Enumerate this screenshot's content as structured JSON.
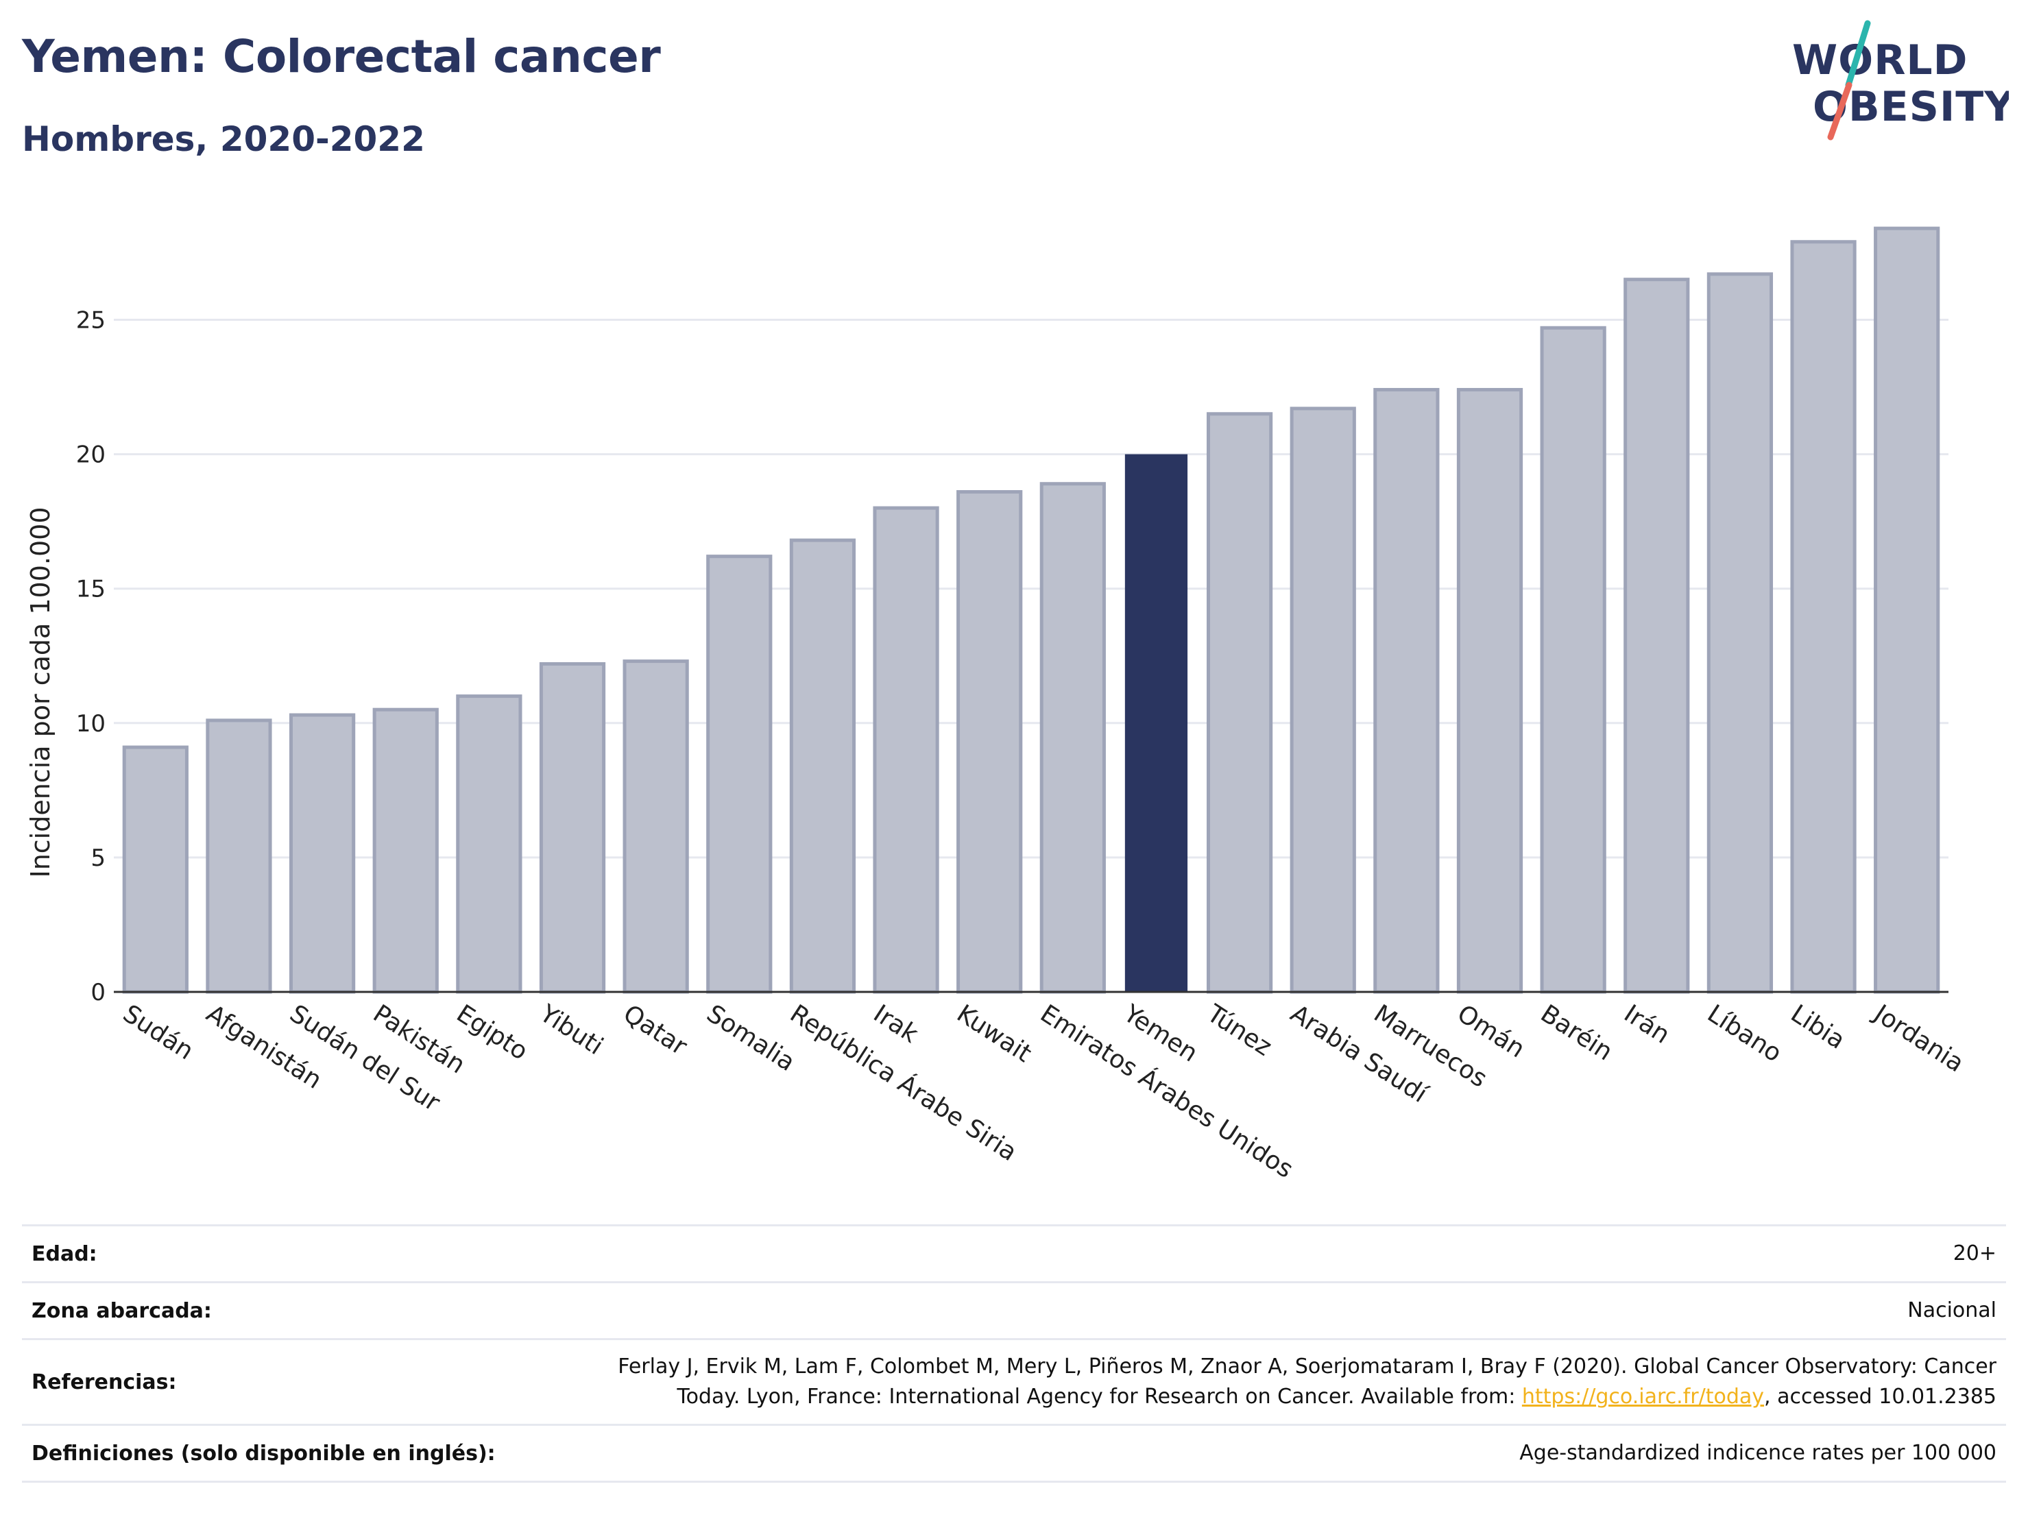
{
  "header": {
    "title": "Yemen: Colorectal cancer",
    "subtitle": "Hombres, 2020-2022"
  },
  "logo": {
    "line1": "WORLD",
    "line2": "OBESITY",
    "stroke_colors": [
      "#2bb5ad",
      "#e8685a"
    ]
  },
  "colors": {
    "highlight": "#2a3560",
    "bar_fill": "#bcc0cd",
    "bar_stroke": "#9ea4b8",
    "link": "#f2b21c"
  },
  "chart_data": {
    "type": "bar",
    "title": "Yemen: Colorectal cancer",
    "subtitle": "Hombres, 2020-2022",
    "xlabel": "",
    "ylabel": "Incidencia por cada 100.000",
    "ylim": [
      0,
      29.5
    ],
    "yticks": [
      0,
      5,
      10,
      15,
      20,
      25
    ],
    "grid": true,
    "highlight_category": "Yemen",
    "categories": [
      "Sudán",
      "Afganistán",
      "Sudán del Sur",
      "Pakistán",
      "Egipto",
      "Yibuti",
      "Qatar",
      "Somalia",
      "República Árabe Siria",
      "Irak",
      "Kuwait",
      "Emiratos Árabes Unidos",
      "Yemen",
      "Túnez",
      "Arabia Saudí",
      "Marruecos",
      "Omán",
      "Baréin",
      "Irán",
      "Líbano",
      "Libia",
      "Jordania"
    ],
    "values": [
      9.1,
      10.1,
      10.3,
      10.5,
      11.0,
      12.2,
      12.3,
      16.2,
      16.8,
      18.0,
      18.6,
      18.9,
      20.0,
      21.5,
      21.7,
      22.4,
      22.4,
      24.7,
      26.5,
      26.7,
      27.9,
      28.4
    ]
  },
  "info": {
    "rows": [
      {
        "label": "Edad:",
        "value": "20+"
      },
      {
        "label": "Zona abarcada:",
        "value": "Nacional"
      },
      {
        "label": "Referencias:",
        "value_before": "Ferlay J, Ervik M, Lam F, Colombet M, Mery L, Piñeros M, Znaor A, Soerjomataram I, Bray F (2020). Global Cancer Observatory: Cancer Today. Lyon, France: International Agency for Research on Cancer. Available from: ",
        "link": "https://gco.iarc.fr/today",
        "value_after": ", accessed 10.01.2385"
      },
      {
        "label": "Definiciones (solo disponible en inglés):",
        "value": "Age-standardized indicence rates per 100 000"
      }
    ]
  }
}
